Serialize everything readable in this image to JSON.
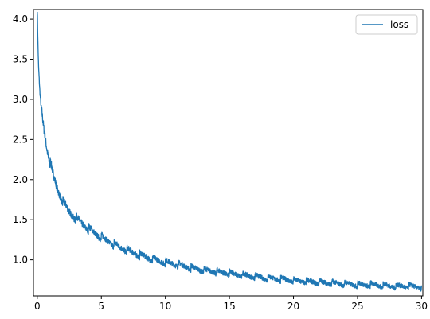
{
  "chart_data": {
    "type": "line",
    "title": "",
    "xlabel": "",
    "ylabel": "",
    "xlim": [
      -0.3,
      30.1
    ],
    "ylim": [
      0.55,
      4.12
    ],
    "xticks": [
      0,
      5,
      10,
      15,
      20,
      25,
      30
    ],
    "yticks": [
      1.0,
      1.5,
      2.0,
      2.5,
      3.0,
      3.5,
      4.0
    ],
    "xtick_labels": [
      "0",
      "5",
      "10",
      "15",
      "20",
      "25",
      "30"
    ],
    "ytick_labels": [
      "1.0",
      "1.5",
      "2.0",
      "2.5",
      "3.0",
      "3.5",
      "4.0"
    ],
    "grid": false,
    "legend": {
      "position": "top-right",
      "entries": [
        {
          "name": "loss",
          "color": "#1f77b4"
        }
      ]
    },
    "series": [
      {
        "name": "loss",
        "color": "#1f77b4",
        "x": [
          0.0,
          0.05,
          0.1,
          0.2,
          0.3,
          0.5,
          0.75,
          1.0,
          1.25,
          1.5,
          1.75,
          2.0,
          2.5,
          3.0,
          3.5,
          4.0,
          4.5,
          5.0,
          6.0,
          7.0,
          8.0,
          9.0,
          10.0,
          11.0,
          12.0,
          13.0,
          14.0,
          15.0,
          16.0,
          17.0,
          18.0,
          19.0,
          20.0,
          21.0,
          22.0,
          23.0,
          24.0,
          25.0,
          26.0,
          27.0,
          28.0,
          29.0,
          30.0
        ],
        "y": [
          4.12,
          3.7,
          3.4,
          3.1,
          2.9,
          2.65,
          2.4,
          2.2,
          2.05,
          1.92,
          1.82,
          1.72,
          1.6,
          1.52,
          1.45,
          1.39,
          1.33,
          1.28,
          1.19,
          1.12,
          1.06,
          1.01,
          0.97,
          0.94,
          0.9,
          0.87,
          0.85,
          0.83,
          0.81,
          0.79,
          0.77,
          0.76,
          0.74,
          0.73,
          0.72,
          0.71,
          0.7,
          0.69,
          0.69,
          0.68,
          0.67,
          0.67,
          0.66
        ]
      }
    ]
  }
}
